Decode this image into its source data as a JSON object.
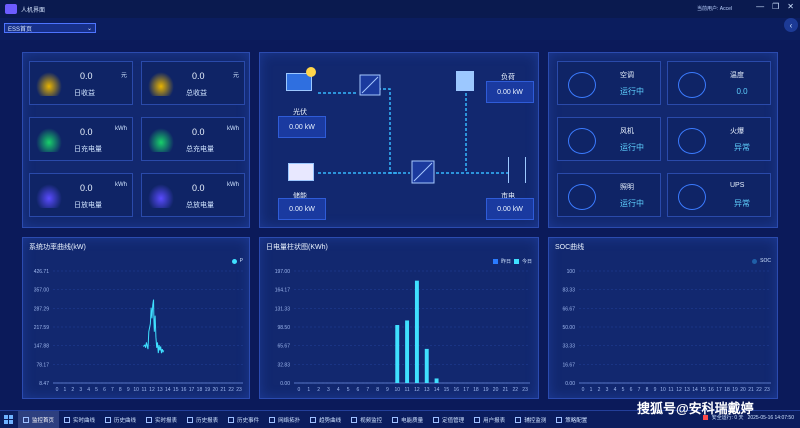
{
  "app": {
    "title": "人机界面",
    "user_label": "当前用户:",
    "user_name": "Accel"
  },
  "window_buttons": {
    "minimize": "—",
    "restore": "❐",
    "close": "✕"
  },
  "nav": {
    "dropdown_value": "ESS首页",
    "collapse_icon": "chevron-left-icon"
  },
  "stats": [
    {
      "value": "0.0",
      "unit": "元",
      "label": "日收益",
      "icon": "gold-coin-icon",
      "color": "#e8b400"
    },
    {
      "value": "0.0",
      "unit": "元",
      "label": "总收益",
      "icon": "gold-stack-icon",
      "color": "#e8b400"
    },
    {
      "value": "0.0",
      "unit": "kWh",
      "label": "日充电量",
      "icon": "charge-icon",
      "color": "#18d06a"
    },
    {
      "value": "0.0",
      "unit": "kWh",
      "label": "总充电量",
      "icon": "charge-icon",
      "color": "#18d06a"
    },
    {
      "value": "0.0",
      "unit": "kWh",
      "label": "日放电量",
      "icon": "discharge-icon",
      "color": "#5a4bff"
    },
    {
      "value": "0.0",
      "unit": "kWh",
      "label": "总放电量",
      "icon": "discharge-icon",
      "color": "#5a4bff"
    }
  ],
  "flow": {
    "pv": {
      "label": "光伏",
      "value": "0.00 kW"
    },
    "storage": {
      "label": "储能",
      "value": "0.00 kW"
    },
    "load": {
      "label": "负荷",
      "value": "0.00 kW"
    },
    "grid": {
      "label": "市电",
      "value": "0.00 kW"
    }
  },
  "equipment": [
    {
      "name": "空调",
      "status": "运行中",
      "icon": "air-conditioner-icon"
    },
    {
      "name": "温度",
      "status": "0.0",
      "icon": "thermometer-icon"
    },
    {
      "name": "风机",
      "status": "运行中",
      "icon": "fan-icon"
    },
    {
      "name": "火爆",
      "status": "异常",
      "icon": "fire-alarm-icon"
    },
    {
      "name": "照明",
      "status": "运行中",
      "icon": "light-bulb-icon"
    },
    {
      "name": "UPS",
      "status": "异常",
      "icon": "ups-icon"
    }
  ],
  "charts": {
    "power": {
      "title": "系统功率曲线(kW)",
      "legend": "P"
    },
    "energy": {
      "title": "日电量柱状图(KWh)",
      "legend_yesterday": "昨日",
      "legend_today": "今日"
    },
    "soc": {
      "title": "SOC曲线",
      "legend": "SOC"
    }
  },
  "chart_data": [
    {
      "type": "line",
      "title": "系统功率曲线(kW)",
      "x": [
        0,
        1,
        2,
        3,
        4,
        5,
        6,
        7,
        8,
        9,
        10,
        11,
        12,
        13,
        14,
        15,
        16,
        17,
        18,
        19,
        20,
        21,
        22,
        23
      ],
      "xticks": [
        "0",
        "1",
        "2",
        "3",
        "4",
        "5",
        "6",
        "7",
        "8",
        "9",
        "10",
        "11",
        "12",
        "13",
        "14",
        "15",
        "16",
        "17",
        "18",
        "19",
        "20",
        "21",
        "22",
        "23"
      ],
      "yticks": [
        "426.71",
        "357.00",
        "287.29",
        "217.59",
        "147.88",
        "78.17",
        "8.47"
      ],
      "ylim": [
        8.47,
        426.71
      ],
      "series": [
        {
          "name": "P",
          "points": [
            [
              10.9,
              145
            ],
            [
              11.1,
              150
            ],
            [
              11.2,
              140
            ],
            [
              11.3,
              160
            ],
            [
              11.5,
              135
            ],
            [
              11.6,
              200
            ],
            [
              11.8,
              230
            ],
            [
              11.9,
              290
            ],
            [
              12.0,
              250
            ],
            [
              12.1,
              300
            ],
            [
              12.2,
              320
            ],
            [
              12.25,
              240
            ],
            [
              12.3,
              200
            ],
            [
              12.4,
              260
            ],
            [
              12.5,
              180
            ],
            [
              12.6,
              140
            ],
            [
              12.7,
              160
            ],
            [
              12.8,
              120
            ],
            [
              12.9,
              150
            ],
            [
              13.0,
              130
            ],
            [
              13.1,
              145
            ],
            [
              13.2,
              120
            ],
            [
              13.3,
              135
            ],
            [
              13.4,
              125
            ],
            [
              13.5,
              130
            ]
          ]
        }
      ]
    },
    {
      "type": "bar",
      "title": "日电量柱状图(KWh)",
      "categories": [
        "0",
        "1",
        "2",
        "3",
        "4",
        "5",
        "6",
        "7",
        "8",
        "9",
        "10",
        "11",
        "12",
        "13",
        "14",
        "15",
        "16",
        "17",
        "18",
        "19",
        "20",
        "21",
        "22",
        "23"
      ],
      "yticks": [
        "197.00",
        "164.17",
        "131.33",
        "98.50",
        "65.67",
        "32.83",
        "0.00"
      ],
      "ylim": [
        0,
        197
      ],
      "series": [
        {
          "name": "昨日",
          "values": [
            0,
            0,
            0,
            0,
            0,
            0,
            0,
            0,
            0,
            0,
            0,
            0,
            0,
            0,
            0,
            0,
            0,
            0,
            0,
            0,
            0,
            0,
            0,
            0
          ]
        },
        {
          "name": "今日",
          "values": [
            0,
            0,
            0,
            0,
            0,
            0,
            0,
            0,
            0,
            0,
            102,
            110,
            180,
            60,
            8,
            0,
            0,
            0,
            0,
            0,
            0,
            0,
            0,
            0
          ]
        }
      ]
    },
    {
      "type": "line",
      "title": "SOC曲线",
      "xticks": [
        "0",
        "1",
        "2",
        "3",
        "4",
        "5",
        "6",
        "7",
        "8",
        "9",
        "10",
        "11",
        "12",
        "13",
        "14",
        "15",
        "16",
        "17",
        "18",
        "19",
        "20",
        "21",
        "22",
        "23"
      ],
      "yticks": [
        "100",
        "83.33",
        "66.67",
        "50.00",
        "33.33",
        "16.67",
        "0.00"
      ],
      "ylim": [
        0,
        100
      ],
      "series": [
        {
          "name": "SOC",
          "points": []
        }
      ]
    }
  ],
  "bottom_nav": [
    {
      "label": "监控首页",
      "active": true
    },
    {
      "label": "实时曲线",
      "active": false
    },
    {
      "label": "历史曲线",
      "active": false
    },
    {
      "label": "实时报表",
      "active": false
    },
    {
      "label": "历史报表",
      "active": false
    },
    {
      "label": "历史事件",
      "active": false
    },
    {
      "label": "网络拓扑",
      "active": false
    },
    {
      "label": "趋势曲线",
      "active": false
    },
    {
      "label": "视频监控",
      "active": false
    },
    {
      "label": "电能质量",
      "active": false
    },
    {
      "label": "定值管理",
      "active": false
    },
    {
      "label": "用户报表",
      "active": false
    },
    {
      "label": "辅控监测",
      "active": false
    },
    {
      "label": "策略配置",
      "active": false
    }
  ],
  "status_bar": {
    "alarm": "安全运行: 0 天",
    "datetime": "2025-05-16 14:07:50"
  },
  "watermark": "搜狐号@安科瑞戴婷"
}
